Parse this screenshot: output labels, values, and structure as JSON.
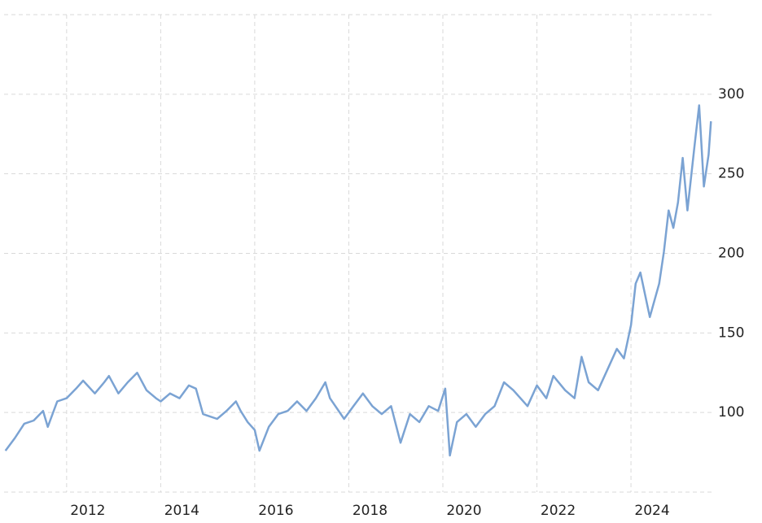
{
  "chart_data": {
    "type": "line",
    "x": [
      2010.7,
      2010.9,
      2011.1,
      2011.3,
      2011.5,
      2011.6,
      2011.8,
      2012.0,
      2012.2,
      2012.35,
      2012.6,
      2012.8,
      2012.9,
      2013.1,
      2013.3,
      2013.5,
      2013.7,
      2013.9,
      2014.0,
      2014.2,
      2014.4,
      2014.6,
      2014.75,
      2014.9,
      2015.2,
      2015.4,
      2015.6,
      2015.7,
      2015.85,
      2016.0,
      2016.1,
      2016.3,
      2016.5,
      2016.7,
      2016.9,
      2017.1,
      2017.3,
      2017.5,
      2017.6,
      2017.9,
      2018.1,
      2018.3,
      2018.5,
      2018.7,
      2018.9,
      2019.1,
      2019.3,
      2019.5,
      2019.7,
      2019.9,
      2020.05,
      2020.15,
      2020.3,
      2020.5,
      2020.7,
      2020.9,
      2021.1,
      2021.3,
      2021.5,
      2021.8,
      2022.0,
      2022.2,
      2022.35,
      2022.6,
      2022.8,
      2022.95,
      2023.1,
      2023.3,
      2023.5,
      2023.7,
      2023.85,
      2024.0,
      2024.1,
      2024.2,
      2024.4,
      2024.6,
      2024.7,
      2024.8,
      2024.9,
      2025.0,
      2025.1,
      2025.2,
      2025.35,
      2025.45,
      2025.55,
      2025.65,
      2025.7
    ],
    "series": [
      {
        "color": "#7ba3d3",
        "values": [
          76,
          84,
          93,
          95,
          101,
          91,
          107,
          109,
          115,
          120,
          112,
          119,
          123,
          112,
          119,
          125,
          114,
          109,
          107,
          112,
          109,
          117,
          115,
          99,
          96,
          101,
          107,
          101,
          94,
          89,
          76,
          91,
          99,
          101,
          107,
          101,
          109,
          119,
          109,
          96,
          104,
          112,
          104,
          99,
          104,
          81,
          99,
          94,
          104,
          101,
          115,
          73,
          94,
          99,
          91,
          99,
          104,
          119,
          114,
          104,
          117,
          109,
          123,
          114,
          109,
          135,
          119,
          114,
          127,
          140,
          134,
          155,
          181,
          188,
          160,
          181,
          201,
          227,
          216,
          232,
          260,
          227,
          267,
          293,
          242,
          262,
          283
        ]
      }
    ],
    "xlim": [
      2010.67,
      2025.73
    ],
    "xticks": [
      2012,
      2014,
      2016,
      2018,
      2020,
      2022,
      2024
    ],
    "ylim": [
      50,
      350
    ],
    "yticks": [
      100,
      150,
      200,
      250,
      300
    ],
    "grid": true
  }
}
